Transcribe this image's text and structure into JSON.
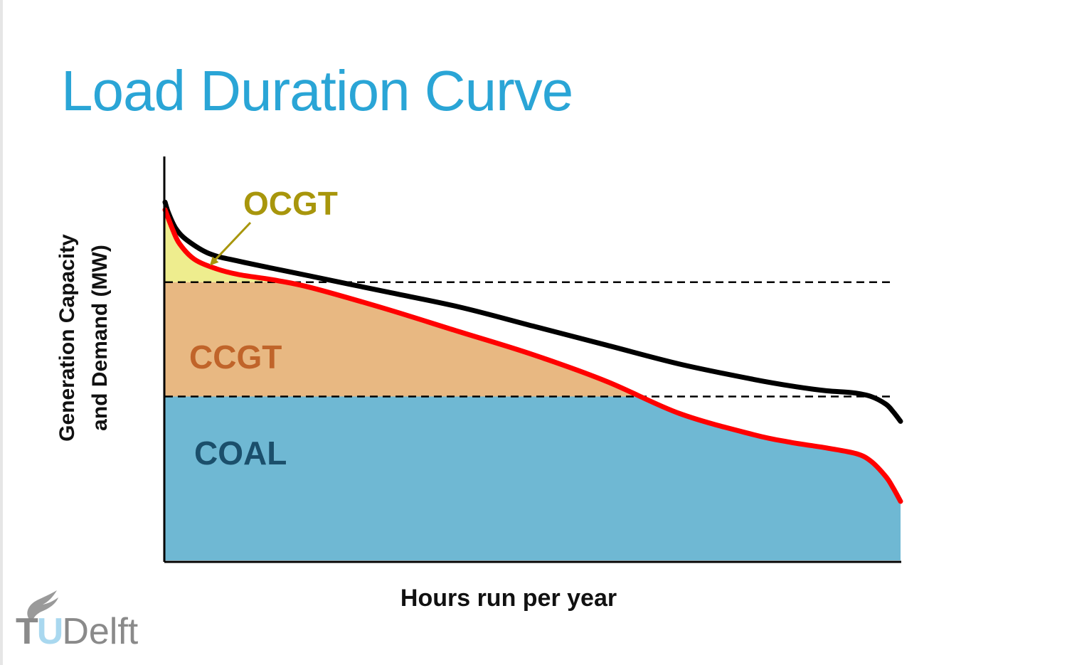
{
  "slide": {
    "title": "Load Duration Curve",
    "logo": {
      "t": "T",
      "u": "U",
      "delft": "Delft"
    }
  },
  "colors": {
    "title": "#2aa5d6",
    "ocgt_fill": "#eeed8e",
    "ccgt_fill": "#e8b882",
    "coal_fill": "#6fb8d3",
    "capacity_line": "#000000",
    "demand_line": "#ff0000",
    "ocgt_label": "#a8960c",
    "ccgt_label": "#c0642a",
    "coal_label": "#1b4f6b"
  },
  "chart_data": {
    "type": "area",
    "title": "Load Duration Curve",
    "xlabel": "Hours run per year",
    "ylabel": "Generation Capacity and Demand (MW)",
    "xlim": [
      0,
      1
    ],
    "ylim": [
      0,
      1
    ],
    "bands": [
      {
        "name": "COAL",
        "from": 0,
        "to": 0.43
      },
      {
        "name": "CCGT",
        "from": 0.43,
        "to": 0.73
      },
      {
        "name": "OCGT",
        "from": 0.73,
        "to": 0.93
      }
    ],
    "thresholds": [
      0.43,
      0.73
    ],
    "series": [
      {
        "name": "capacity",
        "x": [
          0,
          0.005,
          0.015,
          0.03,
          0.06,
          0.1,
          0.2,
          0.3,
          0.4,
          0.5,
          0.6,
          0.7,
          0.8,
          0.86,
          0.9,
          0.935,
          0.96,
          0.98,
          0.99,
          1.0
        ],
        "y": [
          0.94,
          0.91,
          0.87,
          0.84,
          0.805,
          0.785,
          0.745,
          0.705,
          0.665,
          0.615,
          0.565,
          0.515,
          0.475,
          0.455,
          0.445,
          0.44,
          0.43,
          0.41,
          0.39,
          0.365
        ]
      },
      {
        "name": "demand",
        "x": [
          0,
          0.01,
          0.02,
          0.04,
          0.07,
          0.1,
          0.15,
          0.2,
          0.3,
          0.4,
          0.5,
          0.6,
          0.7,
          0.8,
          0.85,
          0.9,
          0.94,
          0.96,
          0.98,
          0.99,
          1.0
        ],
        "y": [
          0.92,
          0.87,
          0.83,
          0.79,
          0.765,
          0.75,
          0.735,
          0.715,
          0.66,
          0.6,
          0.54,
          0.47,
          0.385,
          0.33,
          0.31,
          0.295,
          0.28,
          0.26,
          0.22,
          0.19,
          0.155
        ]
      }
    ],
    "annotations": [
      {
        "text": "OCGT",
        "points_to": "capacity-band-gap"
      },
      {
        "text": "CCGT"
      },
      {
        "text": "COAL"
      }
    ]
  }
}
